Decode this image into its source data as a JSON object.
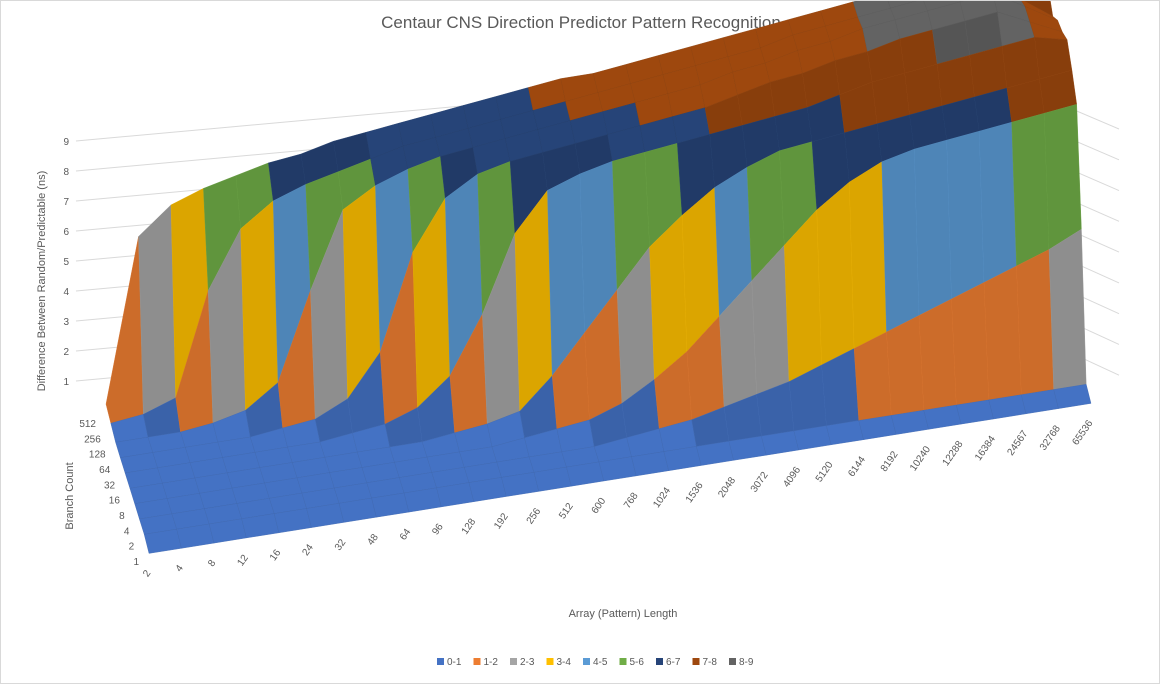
{
  "chart_data": {
    "type": "surface",
    "title": "Centaur CNS Direction Predictor Pattern Recognition",
    "xlabel": "Array (Pattern) Length",
    "ylabel": "Branch Count",
    "zlabel": "Difference Between  Random/Predictable (ns)",
    "x_ticks": [
      "2",
      "4",
      "8",
      "12",
      "16",
      "24",
      "32",
      "48",
      "64",
      "96",
      "128",
      "192",
      "256",
      "512",
      "600",
      "768",
      "1024",
      "1536",
      "2048",
      "3072",
      "4096",
      "5120",
      "6144",
      "8192",
      "10240",
      "12288",
      "16384",
      "24567",
      "32768",
      "65536"
    ],
    "y_ticks": [
      "1",
      "2",
      "4",
      "8",
      "16",
      "32",
      "64",
      "128",
      "256",
      "512"
    ],
    "z_ticks": [
      "1",
      "2",
      "3",
      "4",
      "5",
      "6",
      "7",
      "8",
      "9"
    ],
    "zlim": [
      0,
      9
    ],
    "grid": true,
    "legend_position": "bottom",
    "series": [
      {
        "name": "0-1",
        "color": "#4472c4"
      },
      {
        "name": "1-2",
        "color": "#ed7d31"
      },
      {
        "name": "2-3",
        "color": "#a5a5a5"
      },
      {
        "name": "3-4",
        "color": "#ffc000"
      },
      {
        "name": "4-5",
        "color": "#5b9bd5"
      },
      {
        "name": "5-6",
        "color": "#70ad47"
      },
      {
        "name": "6-7",
        "color": "#264478"
      },
      {
        "name": "7-8",
        "color": "#9e480e"
      },
      {
        "name": "8-9",
        "color": "#636363"
      }
    ],
    "z_by_branch_count": [
      {
        "branch_count": "1",
        "values": [
          0.2,
          0.2,
          0.2,
          0.2,
          0.2,
          0.2,
          0.2,
          0.2,
          0.2,
          0.2,
          0.2,
          0.2,
          0.2,
          0.2,
          0.2,
          0.2,
          0.2,
          0.2,
          0.2,
          0.2,
          0.2,
          0.2,
          0.2,
          0.2,
          0.2,
          0.2,
          0.2,
          0.2,
          0.2,
          0.2
        ]
      },
      {
        "branch_count": "2",
        "values": [
          0.3,
          0.3,
          0.3,
          0.3,
          0.3,
          0.3,
          0.3,
          0.3,
          0.3,
          0.3,
          0.3,
          0.3,
          0.3,
          0.3,
          0.3,
          0.3,
          0.3,
          0.3,
          0.3,
          0.3,
          0.3,
          0.3,
          0.3,
          0.3,
          0.3,
          0.3,
          0.3,
          0.3,
          0.3,
          0.3
        ]
      },
      {
        "branch_count": "4",
        "values": [
          0.3,
          0.3,
          0.3,
          0.3,
          0.3,
          0.3,
          0.3,
          0.3,
          0.3,
          0.3,
          0.3,
          0.3,
          0.3,
          0.3,
          0.3,
          0.4,
          0.5,
          0.6,
          0.8,
          1.0,
          1.2,
          1.5,
          1.8,
          2.1,
          2.4,
          2.7,
          3.0,
          3.3,
          3.6,
          4.0
        ]
      },
      {
        "branch_count": "8",
        "values": [
          0.3,
          0.3,
          0.3,
          0.3,
          0.3,
          0.3,
          0.3,
          0.3,
          0.3,
          0.3,
          0.3,
          0.3,
          0.4,
          0.5,
          0.6,
          0.9,
          1.4,
          2.0,
          2.8,
          3.6,
          4.4,
          5.2,
          5.8,
          6.2,
          6.4,
          6.5,
          6.6,
          6.7,
          6.8,
          6.9
        ]
      },
      {
        "branch_count": "16",
        "values": [
          0.3,
          0.3,
          0.3,
          0.3,
          0.3,
          0.3,
          0.3,
          0.3,
          0.3,
          0.3,
          0.4,
          0.5,
          0.7,
          1.5,
          2.5,
          3.5,
          4.5,
          5.2,
          5.8,
          6.2,
          6.5,
          6.6,
          6.7,
          6.8,
          6.9,
          7.0,
          7.1,
          7.2,
          7.3,
          7.4
        ]
      },
      {
        "branch_count": "32",
        "values": [
          0.3,
          0.3,
          0.3,
          0.3,
          0.3,
          0.3,
          0.3,
          0.4,
          0.5,
          0.8,
          1.5,
          3.0,
          5.0,
          6.0,
          6.3,
          6.5,
          6.6,
          6.7,
          6.8,
          6.9,
          7.0,
          7.1,
          7.3,
          7.5,
          7.6,
          7.7,
          7.8,
          7.9,
          8.0,
          7.8
        ]
      },
      {
        "branch_count": "64",
        "values": [
          0.3,
          0.3,
          0.3,
          0.3,
          0.3,
          0.4,
          0.5,
          0.9,
          2.0,
          4.5,
          5.8,
          6.3,
          6.5,
          6.6,
          6.7,
          6.8,
          6.9,
          7.0,
          7.1,
          7.3,
          7.5,
          7.6,
          7.8,
          7.9,
          8.1,
          8.2,
          8.3,
          8.4,
          8.0,
          7.6
        ]
      },
      {
        "branch_count": "128",
        "values": [
          0.3,
          0.3,
          0.3,
          0.4,
          0.6,
          1.2,
          3.5,
          5.5,
          6.0,
          6.3,
          6.5,
          6.6,
          6.7,
          6.8,
          6.9,
          7.0,
          7.1,
          7.2,
          7.3,
          7.5,
          7.6,
          7.8,
          7.9,
          8.1,
          8.2,
          8.3,
          8.4,
          8.5,
          8.0,
          7.5
        ]
      },
      {
        "branch_count": "256",
        "values": [
          0.4,
          0.5,
          0.8,
          3.5,
          5.0,
          5.6,
          5.9,
          6.1,
          6.3,
          6.5,
          6.6,
          6.7,
          6.8,
          6.9,
          7.0,
          7.1,
          7.2,
          7.3,
          7.4,
          7.5,
          7.6,
          7.8,
          7.9,
          8.0,
          8.1,
          8.2,
          8.4,
          8.5,
          7.8,
          7.2
        ]
      },
      {
        "branch_count": "512",
        "values": [
          0.5,
          4.8,
          5.5,
          5.8,
          6.0,
          6.2,
          6.3,
          6.5,
          6.6,
          6.7,
          6.8,
          6.9,
          7.0,
          7.1,
          7.2,
          7.2,
          7.3,
          7.4,
          7.5,
          7.6,
          7.7,
          7.8,
          7.9,
          8.0,
          8.1,
          8.2,
          8.5,
          8.6,
          8.2,
          7.6
        ]
      }
    ]
  }
}
